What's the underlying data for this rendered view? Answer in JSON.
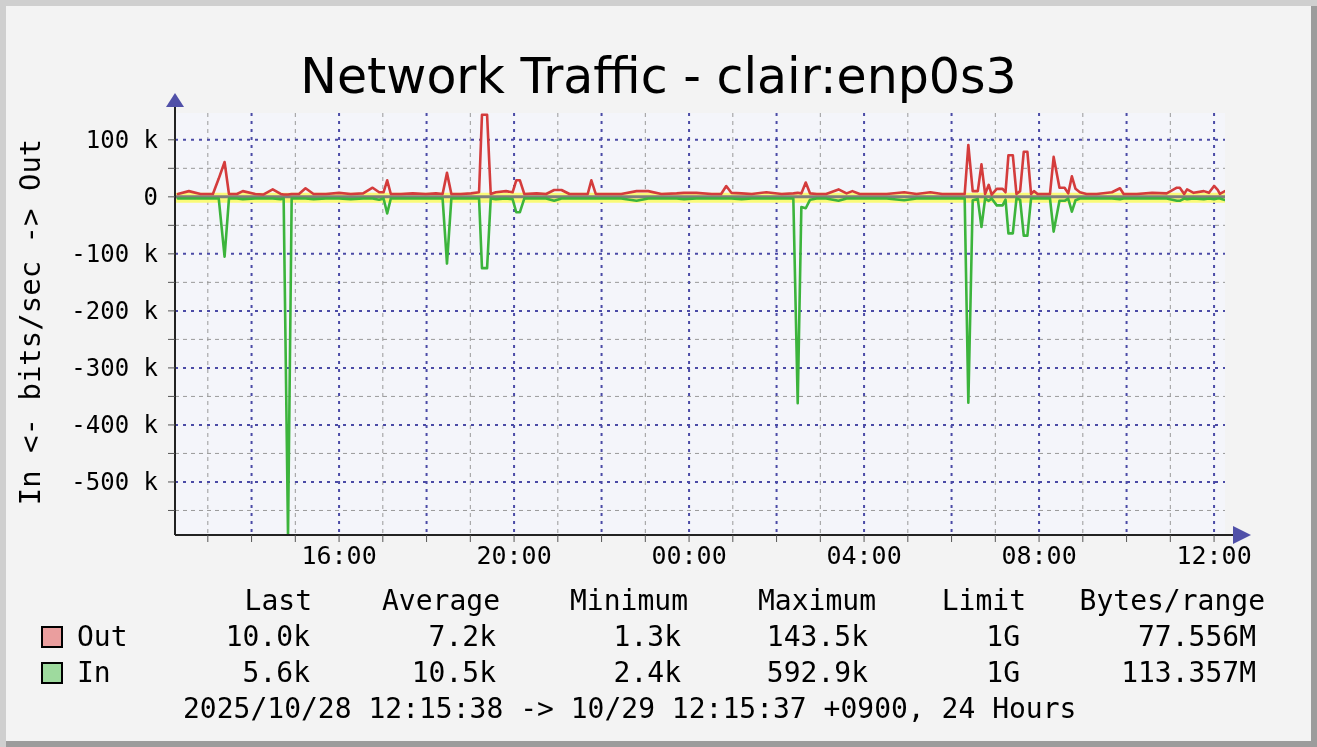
{
  "chart_data": {
    "type": "line",
    "title": "Network Traffic - clair:enp0s3",
    "ylabel": "In <- bits/sec -> Out",
    "x": [
      "2025-10-28T12:19",
      "2025-10-28T12:34",
      "2025-10-28T12:50",
      "2025-10-28T13:07",
      "2025-10-28T13:15",
      "2025-10-28T13:23",
      "2025-10-28T13:29",
      "2025-10-28T13:40",
      "2025-10-28T13:48",
      "2025-10-28T14:05",
      "2025-10-28T14:16",
      "2025-10-28T14:29",
      "2025-10-28T14:40",
      "2025-10-28T14:44",
      "2025-10-28T14:50",
      "2025-10-28T14:55",
      "2025-10-28T15:05",
      "2025-10-28T15:14",
      "2025-10-28T15:25",
      "2025-10-28T15:42",
      "2025-10-28T16:00",
      "2025-10-28T16:16",
      "2025-10-28T16:33",
      "2025-10-28T16:46",
      "2025-10-28T16:55",
      "2025-10-28T17:01",
      "2025-10-28T17:06",
      "2025-10-28T17:11",
      "2025-10-28T17:25",
      "2025-10-28T17:41",
      "2025-10-28T17:59",
      "2025-10-28T18:13",
      "2025-10-28T18:22",
      "2025-10-28T18:28",
      "2025-10-28T18:34",
      "2025-10-28T18:47",
      "2025-10-28T19:01",
      "2025-10-28T19:12",
      "2025-10-28T19:16",
      "2025-10-28T19:23",
      "2025-10-28T19:28",
      "2025-10-28T19:35",
      "2025-10-28T19:49",
      "2025-10-28T19:58",
      "2025-10-28T20:03",
      "2025-10-28T20:08",
      "2025-10-28T20:14",
      "2025-10-28T20:31",
      "2025-10-28T20:44",
      "2025-10-28T20:55",
      "2025-10-28T21:05",
      "2025-10-28T21:16",
      "2025-10-28T21:32",
      "2025-10-28T21:41",
      "2025-10-28T21:46",
      "2025-10-28T21:52",
      "2025-10-28T22:07",
      "2025-10-28T22:27",
      "2025-10-28T22:48",
      "2025-10-28T23:04",
      "2025-10-28T23:22",
      "2025-10-28T23:43",
      "2025-10-28T23:53",
      "2025-10-29T00:10",
      "2025-10-29T00:31",
      "2025-10-29T00:44",
      "2025-10-29T00:51",
      "2025-10-29T00:58",
      "2025-10-29T01:12",
      "2025-10-29T01:26",
      "2025-10-29T01:46",
      "2025-10-29T02:07",
      "2025-10-29T02:23",
      "2025-10-29T02:29",
      "2025-10-29T02:34",
      "2025-10-29T02:40",
      "2025-10-29T02:46",
      "2025-10-29T02:55",
      "2025-10-29T03:08",
      "2025-10-29T03:25",
      "2025-10-29T03:36",
      "2025-10-29T03:44",
      "2025-10-29T03:54",
      "2025-10-29T04:10",
      "2025-10-29T04:31",
      "2025-10-29T04:55",
      "2025-10-29T05:12",
      "2025-10-29T05:31",
      "2025-10-29T05:47",
      "2025-10-29T06:07",
      "2025-10-29T06:18",
      "2025-10-29T06:23",
      "2025-10-29T06:29",
      "2025-10-29T06:36",
      "2025-10-29T06:41",
      "2025-10-29T06:46",
      "2025-10-29T06:51",
      "2025-10-29T06:55",
      "2025-10-29T07:02",
      "2025-10-29T07:10",
      "2025-10-29T07:14",
      "2025-10-29T07:18",
      "2025-10-29T07:24",
      "2025-10-29T07:29",
      "2025-10-29T07:34",
      "2025-10-29T07:39",
      "2025-10-29T07:44",
      "2025-10-29T07:49",
      "2025-10-29T07:53",
      "2025-10-29T07:58",
      "2025-10-29T08:15",
      "2025-10-29T08:20",
      "2025-10-29T08:28",
      "2025-10-29T08:35",
      "2025-10-29T08:40",
      "2025-10-29T08:45",
      "2025-10-29T08:50",
      "2025-10-29T08:56",
      "2025-10-29T09:05",
      "2025-10-29T09:19",
      "2025-10-29T09:40",
      "2025-10-29T09:51",
      "2025-10-29T09:56",
      "2025-10-29T10:14",
      "2025-10-29T10:35",
      "2025-10-29T10:55",
      "2025-10-29T11:09",
      "2025-10-29T11:13",
      "2025-10-29T11:19",
      "2025-10-29T11:23",
      "2025-10-29T11:32",
      "2025-10-29T11:46",
      "2025-10-29T11:53",
      "2025-10-29T12:00",
      "2025-10-29T12:05",
      "2025-10-29T12:08",
      "2025-10-29T12:15"
    ],
    "series": [
      {
        "name": "Out",
        "color": "#d43c3c",
        "values": [
          5000,
          10000,
          5000,
          5000,
          32000,
          61000,
          5000,
          5000,
          10000,
          5000,
          4000,
          13000,
          5000,
          4000,
          4000,
          5000,
          5000,
          15000,
          5000,
          5000,
          7000,
          5000,
          6000,
          16000,
          8000,
          8000,
          29000,
          5000,
          5000,
          6000,
          5000,
          6000,
          5000,
          42000,
          5000,
          5000,
          6000,
          8000,
          144000,
          144000,
          5000,
          8000,
          10000,
          8000,
          29000,
          29000,
          5000,
          6000,
          5000,
          12000,
          12000,
          5000,
          5000,
          5000,
          29000,
          5000,
          5000,
          5000,
          10000,
          10000,
          5000,
          6000,
          7000,
          7000,
          5000,
          5000,
          19000,
          7000,
          6000,
          5000,
          8000,
          5000,
          6000,
          7000,
          6000,
          25000,
          6000,
          5000,
          5000,
          13000,
          6000,
          10000,
          5000,
          5000,
          5000,
          8000,
          5000,
          8000,
          5000,
          5000,
          5000,
          91000,
          10000,
          10000,
          57000,
          5000,
          21000,
          4000,
          14000,
          14000,
          8000,
          73000,
          73000,
          5000,
          10000,
          79000,
          79000,
          5000,
          10000,
          5000,
          5000,
          70000,
          16000,
          16000,
          6000,
          36000,
          14000,
          8000,
          5000,
          5000,
          8000,
          15000,
          5000,
          5000,
          7000,
          6000,
          16000,
          16000,
          5000,
          13000,
          7000,
          10000,
          7000,
          19000,
          12000,
          5000,
          10000
        ]
      },
      {
        "name": "In",
        "color": "#3cb43c",
        "values": [
          -3000,
          -3000,
          -3000,
          -3000,
          -3000,
          -105000,
          -3000,
          -3000,
          -4000,
          -3000,
          -3000,
          -3000,
          -4000,
          -3000,
          -593000,
          -3000,
          -3000,
          -3000,
          -4000,
          -3000,
          -3000,
          -4000,
          -3000,
          -3000,
          -5000,
          -3000,
          -29000,
          -3000,
          -3000,
          -3000,
          -3000,
          -3000,
          -3000,
          -117000,
          -3000,
          -3000,
          -3000,
          -3000,
          -125000,
          -125000,
          -3000,
          -4000,
          -3000,
          -4000,
          -27000,
          -27000,
          -3000,
          -3000,
          -3000,
          -7000,
          -3000,
          -3000,
          -3000,
          -3000,
          -3000,
          -3000,
          -3000,
          -3000,
          -7000,
          -3000,
          -3000,
          -3000,
          -4000,
          -3000,
          -3000,
          -3000,
          -3000,
          -3000,
          -4000,
          -3000,
          -3000,
          -3000,
          -3000,
          -362000,
          -18000,
          -20000,
          -5000,
          -3000,
          -3000,
          -7000,
          -3000,
          -3000,
          -3000,
          -3000,
          -3000,
          -6000,
          -3000,
          -3000,
          -3000,
          -3000,
          -3000,
          -361000,
          -6000,
          -4000,
          -53000,
          -3000,
          -7000,
          -3000,
          -15000,
          -15000,
          -5000,
          -64000,
          -64000,
          -3000,
          -5000,
          -68000,
          -68000,
          -3000,
          -3000,
          -3000,
          -3000,
          -61000,
          -7000,
          -7000,
          -3000,
          -26000,
          -6000,
          -3000,
          -3000,
          -3000,
          -3000,
          -4000,
          -3000,
          -3000,
          -3000,
          -3000,
          -7000,
          -7000,
          -3000,
          -4000,
          -3000,
          -4000,
          -3000,
          -4000,
          -3000,
          -3000,
          -5600
        ]
      }
    ],
    "xlim": [
      "2025-10-28T12:15",
      "2025-10-29T12:15"
    ],
    "xticks": [
      {
        "value": "2025-10-28T13:00",
        "label": null
      },
      {
        "value": "2025-10-28T14:00",
        "label": null
      },
      {
        "value": "2025-10-28T15:00",
        "label": null
      },
      {
        "value": "2025-10-28T16:00",
        "label": "16:00"
      },
      {
        "value": "2025-10-28T17:00",
        "label": null
      },
      {
        "value": "2025-10-28T18:00",
        "label": null
      },
      {
        "value": "2025-10-28T19:00",
        "label": null
      },
      {
        "value": "2025-10-28T20:00",
        "label": "20:00"
      },
      {
        "value": "2025-10-28T21:00",
        "label": null
      },
      {
        "value": "2025-10-28T22:00",
        "label": null
      },
      {
        "value": "2025-10-28T23:00",
        "label": null
      },
      {
        "value": "2025-10-29T00:00",
        "label": "00:00"
      },
      {
        "value": "2025-10-29T01:00",
        "label": null
      },
      {
        "value": "2025-10-29T02:00",
        "label": null
      },
      {
        "value": "2025-10-29T03:00",
        "label": null
      },
      {
        "value": "2025-10-29T04:00",
        "label": "04:00"
      },
      {
        "value": "2025-10-29T05:00",
        "label": null
      },
      {
        "value": "2025-10-29T06:00",
        "label": null
      },
      {
        "value": "2025-10-29T07:00",
        "label": null
      },
      {
        "value": "2025-10-29T08:00",
        "label": "08:00"
      },
      {
        "value": "2025-10-29T09:00",
        "label": null
      },
      {
        "value": "2025-10-29T10:00",
        "label": null
      },
      {
        "value": "2025-10-29T11:00",
        "label": null
      },
      {
        "value": "2025-10-29T12:00",
        "label": "12:00"
      }
    ],
    "ylim": [
      -593000,
      147000
    ],
    "yticks": [
      {
        "value": -550000,
        "label": null
      },
      {
        "value": -500000,
        "label": "-500 k"
      },
      {
        "value": -450000,
        "label": null
      },
      {
        "value": -400000,
        "label": "-400 k"
      },
      {
        "value": -350000,
        "label": null
      },
      {
        "value": -300000,
        "label": "-300 k"
      },
      {
        "value": -250000,
        "label": null
      },
      {
        "value": -200000,
        "label": "-200 k"
      },
      {
        "value": -150000,
        "label": null
      },
      {
        "value": -100000,
        "label": "-100 k"
      },
      {
        "value": -50000,
        "label": null
      },
      0,
      {
        "value": 50000,
        "label": null
      },
      {
        "value": 100000,
        "label": "100 k"
      }
    ],
    "grid": true,
    "legend": "bottom",
    "ref_lines": [
      {
        "axis": "y",
        "value": 0,
        "color": "#7f7f7f"
      }
    ],
    "bands": [
      {
        "axis": "y",
        "from": -10500,
        "to": 7200,
        "color": "#fafa78"
      }
    ],
    "annotations": [
      "Last",
      "Average",
      "Minimum",
      "Maximum",
      "Limit",
      "Bytes/range",
      "10.0k",
      "7.2k",
      "1.3k",
      "143.5k",
      "1G",
      "77.556M",
      "5.6k",
      "10.5k",
      "2.4k",
      "592.9k",
      "1G",
      "113.357M",
      "2025/10/28 12:15:38 -> 10/29 12:15:37 +0900, 24 Hours"
    ]
  }
}
